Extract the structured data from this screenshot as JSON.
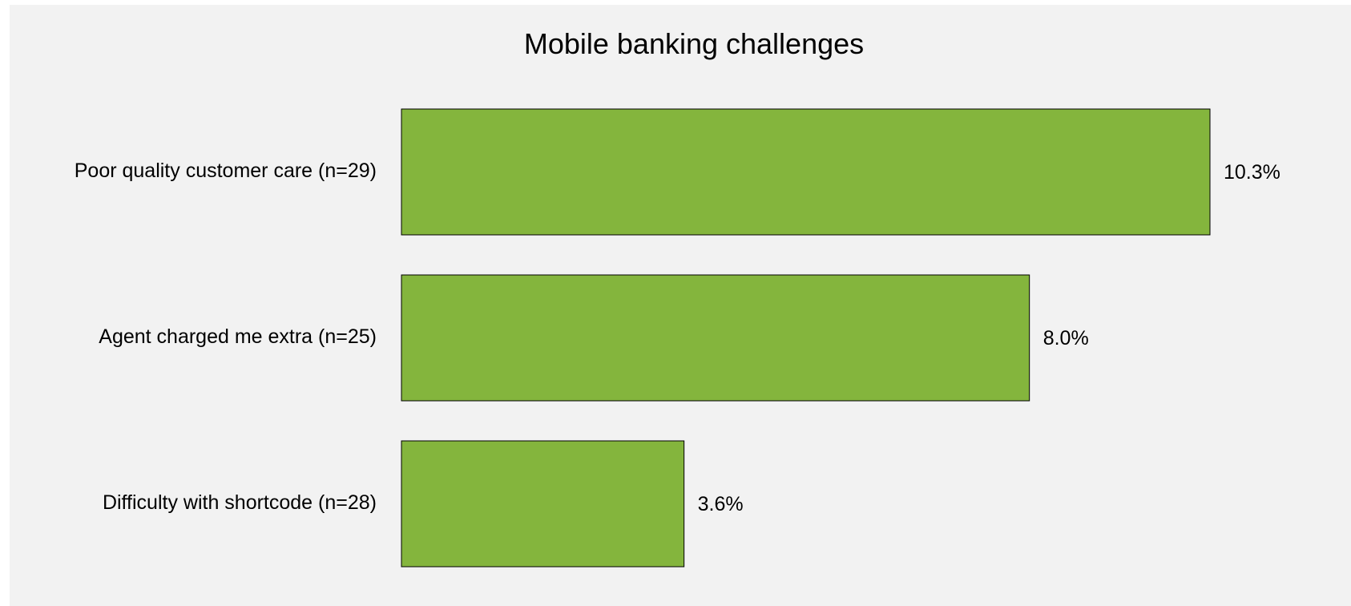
{
  "chart_data": {
    "type": "bar",
    "orientation": "horizontal",
    "title": "Mobile banking challenges",
    "categories": [
      "Poor quality customer care (n=29)",
      "Agent charged me extra (n=25)",
      "Difficulty with shortcode (n=28)"
    ],
    "values": [
      10.3,
      8.0,
      3.6
    ],
    "value_labels": [
      "10.3%",
      "8.0%",
      "3.6%"
    ],
    "xlim": [
      0,
      10.3
    ],
    "unit": "%",
    "grid": false,
    "legend": "none",
    "colors": {
      "bar_fill": "#84b53d",
      "bar_stroke": "#000000",
      "plot_background": "#f2f2f2"
    }
  }
}
